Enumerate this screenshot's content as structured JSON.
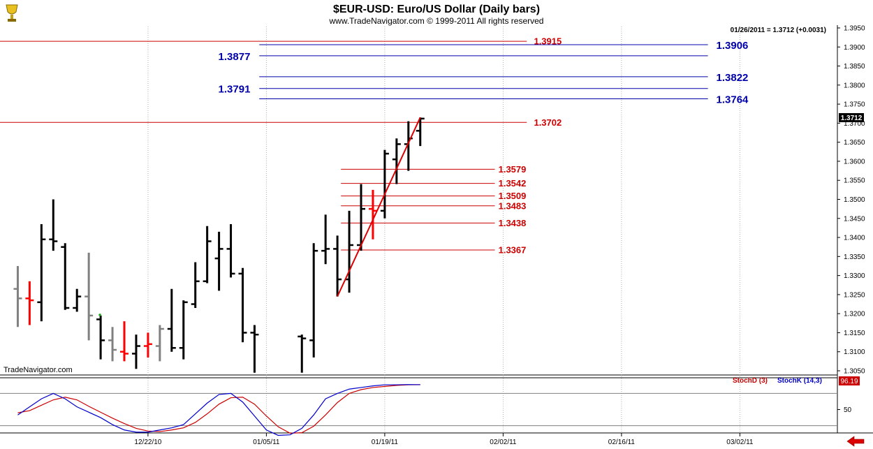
{
  "header": {
    "title": "$EUR-USD:  Euro/US Dollar  (Daily bars)",
    "subtitle": "www.TradeNavigator.com © 1999-2011 All rights reserved",
    "readout": "01/26/2011 = 1.3712 (+0.0031)",
    "watermark": "TradeNavigator.com",
    "last_price": "1.3712",
    "stoch_value": "96.19",
    "logo_icon": "trophy-icon",
    "scroll_icon": "left-arrow-icon"
  },
  "colors": {
    "up_bar": "#000000",
    "down_bar": "#000000",
    "gray_bar": "#808080",
    "red_bar": "#ff0000",
    "fib_red": "#cc0000",
    "target_blue": "#0000aa",
    "stoch_d": "#cc0000",
    "stoch_k": "#0000cc"
  },
  "chart_data": {
    "type": "ohlc",
    "y_axis": {
      "range": [
        1.305,
        1.395
      ],
      "ticks": [
        "1.3050",
        "1.3100",
        "1.3150",
        "1.3200",
        "1.3250",
        "1.3300",
        "1.3350",
        "1.3400",
        "1.3450",
        "1.3500",
        "1.3550",
        "1.3600",
        "1.3650",
        "1.3700",
        "1.3750",
        "1.3800",
        "1.3850",
        "1.3900",
        "1.3950"
      ]
    },
    "x_axis": {
      "labels": [
        {
          "label": "12/22/10",
          "bar": 12
        },
        {
          "label": "01/05/11",
          "bar": 22
        },
        {
          "label": "01/19/11",
          "bar": 32
        },
        {
          "label": "02/02/11",
          "bar": 42
        },
        {
          "label": "02/16/11",
          "bar": 52
        },
        {
          "label": "03/02/11",
          "bar": 62
        }
      ]
    },
    "bars": [
      {
        "bar": 1,
        "o": 1.3265,
        "h": 1.3325,
        "l": 1.3165,
        "c": 1.324,
        "color": "gray"
      },
      {
        "bar": 2,
        "o": 1.324,
        "h": 1.3285,
        "l": 1.317,
        "c": 1.3235,
        "color": "red"
      },
      {
        "bar": 3,
        "o": 1.323,
        "h": 1.3435,
        "l": 1.318,
        "c": 1.3395,
        "color": "black"
      },
      {
        "bar": 4,
        "o": 1.3395,
        "h": 1.35,
        "l": 1.3365,
        "c": 1.339,
        "color": "black"
      },
      {
        "bar": 5,
        "o": 1.3375,
        "h": 1.3385,
        "l": 1.321,
        "c": 1.3215,
        "color": "black"
      },
      {
        "bar": 6,
        "o": 1.3215,
        "h": 1.3265,
        "l": 1.3205,
        "c": 1.3245,
        "color": "black"
      },
      {
        "bar": 7,
        "o": 1.3245,
        "h": 1.336,
        "l": 1.313,
        "c": 1.3195,
        "color": "gray"
      },
      {
        "bar": 8,
        "o": 1.3185,
        "h": 1.3195,
        "l": 1.308,
        "c": 1.313,
        "color": "black"
      },
      {
        "bar": 9,
        "o": 1.313,
        "h": 1.3165,
        "l": 1.3075,
        "c": 1.3105,
        "color": "gray"
      },
      {
        "bar": 10,
        "o": 1.31,
        "h": 1.318,
        "l": 1.3075,
        "c": 1.3095,
        "color": "red"
      },
      {
        "bar": 11,
        "o": 1.3095,
        "h": 1.3145,
        "l": 1.3055,
        "c": 1.3115,
        "color": "black"
      },
      {
        "bar": 12,
        "o": 1.3115,
        "h": 1.315,
        "l": 1.3085,
        "c": 1.312,
        "color": "red"
      },
      {
        "bar": 13,
        "o": 1.3115,
        "h": 1.317,
        "l": 1.3075,
        "c": 1.316,
        "color": "gray"
      },
      {
        "bar": 14,
        "o": 1.316,
        "h": 1.3265,
        "l": 1.31,
        "c": 1.311,
        "color": "black"
      },
      {
        "bar": 15,
        "o": 1.311,
        "h": 1.3235,
        "l": 1.308,
        "c": 1.323,
        "color": "black"
      },
      {
        "bar": 16,
        "o": 1.3225,
        "h": 1.3335,
        "l": 1.3215,
        "c": 1.3285,
        "color": "black"
      },
      {
        "bar": 17,
        "o": 1.3285,
        "h": 1.343,
        "l": 1.328,
        "c": 1.339,
        "color": "black"
      },
      {
        "bar": 18,
        "o": 1.3345,
        "h": 1.3415,
        "l": 1.326,
        "c": 1.337,
        "color": "black"
      },
      {
        "bar": 19,
        "o": 1.337,
        "h": 1.3435,
        "l": 1.3295,
        "c": 1.3305,
        "color": "black"
      },
      {
        "bar": 20,
        "o": 1.3305,
        "h": 1.332,
        "l": 1.3125,
        "c": 1.315,
        "color": "black"
      },
      {
        "bar": 21,
        "o": 1.315,
        "h": 1.317,
        "l": 1.3045,
        "c": 1.3145,
        "color": "black"
      },
      {
        "bar": 25,
        "o": 1.314,
        "h": 1.3145,
        "l": 1.3045,
        "c": 1.3135,
        "color": "black"
      },
      {
        "bar": 26,
        "o": 1.313,
        "h": 1.3385,
        "l": 1.3085,
        "c": 1.3365,
        "color": "black"
      },
      {
        "bar": 27,
        "o": 1.3365,
        "h": 1.346,
        "l": 1.333,
        "c": 1.337,
        "color": "black"
      },
      {
        "bar": 28,
        "o": 1.337,
        "h": 1.3405,
        "l": 1.3245,
        "c": 1.329,
        "color": "black"
      },
      {
        "bar": 29,
        "o": 1.329,
        "h": 1.347,
        "l": 1.3255,
        "c": 1.338,
        "color": "black"
      },
      {
        "bar": 30,
        "o": 1.338,
        "h": 1.354,
        "l": 1.3365,
        "c": 1.3475,
        "color": "black"
      },
      {
        "bar": 31,
        "o": 1.3475,
        "h": 1.3525,
        "l": 1.3395,
        "c": 1.347,
        "color": "red"
      },
      {
        "bar": 32,
        "o": 1.347,
        "h": 1.363,
        "l": 1.345,
        "c": 1.362,
        "color": "black"
      },
      {
        "bar": 33,
        "o": 1.3605,
        "h": 1.366,
        "l": 1.354,
        "c": 1.3645,
        "color": "black"
      },
      {
        "bar": 34,
        "o": 1.3645,
        "h": 1.3705,
        "l": 1.3575,
        "c": 1.366,
        "color": "black"
      },
      {
        "bar": 35,
        "o": 1.368,
        "h": 1.3715,
        "l": 1.364,
        "c": 1.3712,
        "color": "black"
      }
    ],
    "trendline": {
      "from": {
        "bar": 28,
        "price": 1.3245
      },
      "to": {
        "bar": 35,
        "price": 1.3715
      }
    },
    "levels": [
      {
        "price": 1.3915,
        "label": "1.3915",
        "kind": "red",
        "from_bar": -1,
        "to_bar": 44,
        "label_bar": 44.6,
        "label_side": "right"
      },
      {
        "price": 1.3906,
        "label": "1.3906",
        "kind": "blue",
        "from_bar": 21.4,
        "to_bar": 59.3,
        "label_bar": 60,
        "label_side": "right"
      },
      {
        "price": 1.3877,
        "label": "1.3877",
        "kind": "blue",
        "from_bar": 21.4,
        "to_bar": 59.3,
        "label_bar": 21,
        "label_side": "left"
      },
      {
        "price": 1.3822,
        "label": "1.3822",
        "kind": "blue",
        "from_bar": 21.4,
        "to_bar": 59.3,
        "label_bar": 60,
        "label_side": "right"
      },
      {
        "price": 1.3791,
        "label": "1.3791",
        "kind": "blue",
        "from_bar": 21.4,
        "to_bar": 59.3,
        "label_bar": 21,
        "label_side": "left"
      },
      {
        "price": 1.3764,
        "label": "1.3764",
        "kind": "blue",
        "from_bar": 21.4,
        "to_bar": 59.3,
        "label_bar": 60,
        "label_side": "right"
      },
      {
        "price": 1.3702,
        "label": "1.3702",
        "kind": "red",
        "from_bar": -1,
        "to_bar": 44,
        "label_bar": 44.6,
        "label_side": "right"
      },
      {
        "price": 1.3579,
        "label": "1.3579",
        "kind": "red",
        "from_bar": 28.3,
        "to_bar": 41.3,
        "label_bar": 41.6,
        "label_side": "right"
      },
      {
        "price": 1.3542,
        "label": "1.3542",
        "kind": "red",
        "from_bar": 28.3,
        "to_bar": 41.3,
        "label_bar": 41.6,
        "label_side": "right"
      },
      {
        "price": 1.3509,
        "label": "1.3509",
        "kind": "red",
        "from_bar": 28.3,
        "to_bar": 41.3,
        "label_bar": 41.6,
        "label_side": "right"
      },
      {
        "price": 1.3483,
        "label": "1.3483",
        "kind": "red",
        "from_bar": 28.3,
        "to_bar": 41.3,
        "label_bar": 41.6,
        "label_side": "right"
      },
      {
        "price": 1.3438,
        "label": "1.3438",
        "kind": "red",
        "from_bar": 28.3,
        "to_bar": 41.3,
        "label_bar": 41.6,
        "label_side": "right"
      },
      {
        "price": 1.3367,
        "label": "1.3367",
        "kind": "red",
        "from_bar": 28.3,
        "to_bar": 41.3,
        "label_bar": 41.6,
        "label_side": "right"
      }
    ],
    "stochastic": {
      "range": [
        0,
        100
      ],
      "ticks": [
        "50"
      ],
      "reference_lines": [
        80,
        20
      ],
      "legend": [
        {
          "name": "StochD (3)",
          "color": "red"
        },
        {
          "name": "StochK (14,3)",
          "color": "blue"
        }
      ],
      "stoch_k": [
        [
          1,
          40
        ],
        [
          2,
          55
        ],
        [
          3,
          70
        ],
        [
          4,
          80
        ],
        [
          5,
          70
        ],
        [
          6,
          55
        ],
        [
          7,
          45
        ],
        [
          8,
          35
        ],
        [
          9,
          22
        ],
        [
          10,
          12
        ],
        [
          11,
          8
        ],
        [
          12,
          8
        ],
        [
          13,
          12
        ],
        [
          14,
          16
        ],
        [
          15,
          22
        ],
        [
          16,
          42
        ],
        [
          17,
          62
        ],
        [
          18,
          78
        ],
        [
          19,
          80
        ],
        [
          20,
          64
        ],
        [
          21,
          38
        ],
        [
          22,
          12
        ],
        [
          23,
          2
        ],
        [
          24,
          3
        ],
        [
          25,
          15
        ],
        [
          26,
          40
        ],
        [
          27,
          70
        ],
        [
          28,
          80
        ],
        [
          29,
          88
        ],
        [
          30,
          91
        ],
        [
          31,
          94
        ],
        [
          32,
          96
        ],
        [
          33,
          96
        ],
        [
          34,
          96.5
        ],
        [
          35,
          96.2
        ]
      ],
      "stoch_d": [
        [
          1,
          44
        ],
        [
          2,
          48
        ],
        [
          3,
          58
        ],
        [
          4,
          68
        ],
        [
          5,
          73
        ],
        [
          6,
          68
        ],
        [
          7,
          56
        ],
        [
          8,
          45
        ],
        [
          9,
          34
        ],
        [
          10,
          24
        ],
        [
          11,
          15
        ],
        [
          12,
          10
        ],
        [
          13,
          9
        ],
        [
          14,
          12
        ],
        [
          15,
          16
        ],
        [
          16,
          26
        ],
        [
          17,
          42
        ],
        [
          18,
          60
        ],
        [
          19,
          72
        ],
        [
          20,
          73
        ],
        [
          21,
          60
        ],
        [
          22,
          38
        ],
        [
          23,
          18
        ],
        [
          24,
          6
        ],
        [
          25,
          7
        ],
        [
          26,
          19
        ],
        [
          27,
          40
        ],
        [
          28,
          63
        ],
        [
          29,
          80
        ],
        [
          30,
          87
        ],
        [
          31,
          91
        ],
        [
          32,
          93
        ],
        [
          33,
          95
        ],
        [
          34,
          96
        ],
        [
          35,
          96.3
        ]
      ]
    }
  }
}
